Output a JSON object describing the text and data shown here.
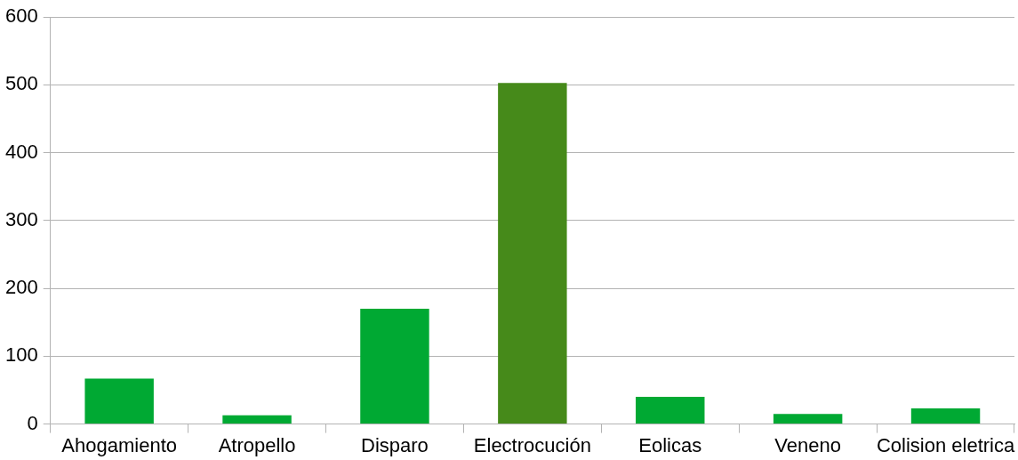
{
  "chart_data": {
    "type": "bar",
    "categories": [
      "Ahogamiento",
      "Atropello",
      "Disparo",
      "Electrocución",
      "Eolicas",
      "Veneno",
      "Colision eletrica"
    ],
    "values": [
      67,
      13,
      170,
      503,
      40,
      15,
      23
    ],
    "colors": [
      "#00a933",
      "#00a933",
      "#00a933",
      "#468a1a",
      "#00a933",
      "#00a933",
      "#00a933"
    ],
    "ylim": [
      0,
      600
    ],
    "yticks": [
      0,
      100,
      200,
      300,
      400,
      500,
      600
    ],
    "grid": "y",
    "legend": false
  }
}
